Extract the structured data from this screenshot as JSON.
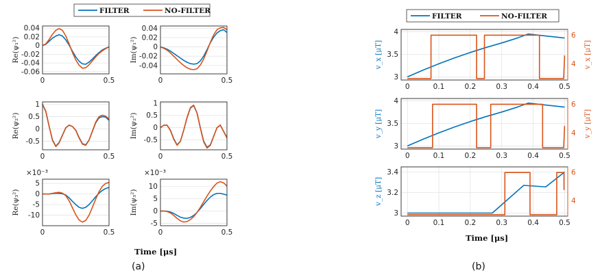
{
  "colors": {
    "filter": "#0072BD",
    "nofilter": "#D95319",
    "axis": "#262626",
    "grid": "#e3e3e3"
  },
  "captions": {
    "a": "(a)",
    "b": "(b)"
  },
  "legend": {
    "filter": "FILTER",
    "nofilter": "NO-FILTER"
  },
  "chart_data": [
    {
      "id": "a1",
      "type": "line",
      "ylabel": "Re(ψ₁²)",
      "xlim": [
        0,
        0.5
      ],
      "ylim": [
        -0.065,
        0.045
      ],
      "xticks": [
        "0",
        "0.5"
      ],
      "yticks": [
        "0.04",
        "0.02",
        "0",
        "-0.02",
        "-0.04",
        "-0.06"
      ],
      "grid": true,
      "series": [
        {
          "name": "FILTER",
          "x": [
            0,
            0.025,
            0.05,
            0.075,
            0.1,
            0.125,
            0.15,
            0.175,
            0.2,
            0.225,
            0.25,
            0.275,
            0.3,
            0.325,
            0.35,
            0.375,
            0.4,
            0.425,
            0.45,
            0.475,
            0.5
          ],
          "y": [
            0,
            0.003,
            0.01,
            0.017,
            0.022,
            0.025,
            0.022,
            0.013,
            0.001,
            -0.013,
            -0.026,
            -0.036,
            -0.042,
            -0.043,
            -0.038,
            -0.031,
            -0.023,
            -0.016,
            -0.01,
            -0.006,
            -0.003
          ]
        },
        {
          "name": "NO-FILTER",
          "x": [
            0,
            0.025,
            0.05,
            0.075,
            0.1,
            0.125,
            0.15,
            0.175,
            0.2,
            0.225,
            0.25,
            0.275,
            0.3,
            0.325,
            0.35,
            0.375,
            0.4,
            0.425,
            0.45,
            0.475,
            0.5
          ],
          "y": [
            0,
            0.004,
            0.014,
            0.026,
            0.035,
            0.039,
            0.035,
            0.022,
            0.004,
            -0.016,
            -0.033,
            -0.045,
            -0.052,
            -0.051,
            -0.044,
            -0.035,
            -0.026,
            -0.018,
            -0.012,
            -0.007,
            -0.003
          ]
        }
      ]
    },
    {
      "id": "a2",
      "type": "line",
      "ylabel": "Im(ψ₁²)",
      "xlim": [
        0,
        0.5
      ],
      "ylim": [
        -0.058,
        0.045
      ],
      "xticks": [
        "0",
        "0.5"
      ],
      "yticks": [
        "0.04",
        "0.02",
        "0",
        "-0.02",
        "-0.04"
      ],
      "grid": true,
      "series": [
        {
          "name": "FILTER",
          "x": [
            0,
            0.025,
            0.05,
            0.075,
            0.1,
            0.125,
            0.15,
            0.175,
            0.2,
            0.225,
            0.25,
            0.275,
            0.3,
            0.325,
            0.35,
            0.375,
            0.4,
            0.425,
            0.45,
            0.475,
            0.5
          ],
          "y": [
            0,
            -0.002,
            -0.005,
            -0.009,
            -0.014,
            -0.019,
            -0.024,
            -0.029,
            -0.033,
            -0.036,
            -0.037,
            -0.036,
            -0.03,
            -0.02,
            -0.006,
            0.009,
            0.021,
            0.03,
            0.035,
            0.037,
            0.031
          ]
        },
        {
          "name": "NO-FILTER",
          "x": [
            0,
            0.025,
            0.05,
            0.075,
            0.1,
            0.125,
            0.15,
            0.175,
            0.2,
            0.225,
            0.25,
            0.275,
            0.3,
            0.325,
            0.35,
            0.375,
            0.4,
            0.425,
            0.45,
            0.475,
            0.5
          ],
          "y": [
            0,
            -0.003,
            -0.007,
            -0.013,
            -0.02,
            -0.027,
            -0.034,
            -0.04,
            -0.045,
            -0.048,
            -0.049,
            -0.047,
            -0.039,
            -0.026,
            -0.009,
            0.01,
            0.026,
            0.037,
            0.041,
            0.042,
            0.037
          ]
        }
      ]
    },
    {
      "id": "a3",
      "type": "line",
      "ylabel": "Re(ψ₂²)",
      "xlim": [
        0,
        0.5
      ],
      "ylim": [
        -0.85,
        1.1
      ],
      "xticks": [
        "0",
        "0.5"
      ],
      "yticks": [
        "1",
        "0.5",
        "0",
        "-0.5"
      ],
      "grid": true,
      "series": [
        {
          "name": "FILTER",
          "x": [
            0,
            0.025,
            0.05,
            0.075,
            0.1,
            0.125,
            0.15,
            0.175,
            0.2,
            0.225,
            0.25,
            0.275,
            0.3,
            0.325,
            0.35,
            0.375,
            0.4,
            0.425,
            0.45,
            0.475,
            0.5
          ],
          "y": [
            1.0,
            0.7,
            0.1,
            -0.45,
            -0.7,
            -0.55,
            -0.25,
            0.05,
            0.15,
            0.1,
            -0.05,
            -0.35,
            -0.6,
            -0.65,
            -0.45,
            -0.1,
            0.25,
            0.45,
            0.5,
            0.48,
            0.35
          ]
        },
        {
          "name": "NO-FILTER",
          "x": [
            0,
            0.025,
            0.05,
            0.075,
            0.1,
            0.125,
            0.15,
            0.175,
            0.2,
            0.225,
            0.25,
            0.275,
            0.3,
            0.325,
            0.35,
            0.375,
            0.4,
            0.425,
            0.45,
            0.475,
            0.5
          ],
          "y": [
            1.0,
            0.72,
            0.1,
            -0.47,
            -0.72,
            -0.57,
            -0.26,
            0.04,
            0.16,
            0.1,
            -0.06,
            -0.37,
            -0.62,
            -0.67,
            -0.46,
            -0.09,
            0.28,
            0.5,
            0.56,
            0.52,
            0.4
          ]
        }
      ]
    },
    {
      "id": "a4",
      "type": "line",
      "ylabel": "Im(ψ₂²)",
      "xlim": [
        0,
        0.5
      ],
      "ylim": [
        -0.9,
        1.05
      ],
      "xticks": [
        "0",
        "0.5"
      ],
      "yticks": [
        "1",
        "0.5",
        "0",
        "-0.5"
      ],
      "grid": true,
      "series": [
        {
          "name": "FILTER",
          "x": [
            0,
            0.025,
            0.05,
            0.075,
            0.1,
            0.125,
            0.15,
            0.175,
            0.2,
            0.225,
            0.25,
            0.275,
            0.3,
            0.325,
            0.35,
            0.375,
            0.4,
            0.425,
            0.45,
            0.475,
            0.5
          ],
          "y": [
            0,
            0.1,
            0.1,
            -0.1,
            -0.45,
            -0.7,
            -0.55,
            -0.1,
            0.4,
            0.8,
            0.9,
            0.6,
            0.0,
            -0.55,
            -0.8,
            -0.7,
            -0.35,
            0.0,
            0.1,
            -0.15,
            -0.4
          ]
        },
        {
          "name": "NO-FILTER",
          "x": [
            0,
            0.025,
            0.05,
            0.075,
            0.1,
            0.125,
            0.15,
            0.175,
            0.2,
            0.225,
            0.25,
            0.275,
            0.3,
            0.325,
            0.35,
            0.375,
            0.4,
            0.425,
            0.45,
            0.475,
            0.5
          ],
          "y": [
            0,
            0.1,
            0.1,
            -0.12,
            -0.47,
            -0.72,
            -0.56,
            -0.1,
            0.42,
            0.82,
            0.92,
            0.6,
            -0.02,
            -0.58,
            -0.83,
            -0.72,
            -0.36,
            0.0,
            0.11,
            -0.16,
            -0.42
          ]
        }
      ]
    },
    {
      "id": "a5",
      "type": "line",
      "ylabel": "Re(ψ₃²)",
      "xlim": [
        0,
        0.5
      ],
      "ylim": [
        -15,
        7
      ],
      "exponent": "×10⁻³",
      "xticks": [
        "0",
        "0.5"
      ],
      "yticks": [
        "5",
        "0",
        "-5",
        "-10"
      ],
      "grid": true,
      "series": [
        {
          "name": "FILTER",
          "x": [
            0,
            0.025,
            0.05,
            0.075,
            0.1,
            0.125,
            0.15,
            0.175,
            0.2,
            0.225,
            0.25,
            0.275,
            0.3,
            0.325,
            0.35,
            0.375,
            0.4,
            0.425,
            0.45,
            0.475,
            0.5
          ],
          "y": [
            0,
            0,
            0,
            0.2,
            0.3,
            0.3,
            0.1,
            -0.5,
            -1.8,
            -3.5,
            -5,
            -6.3,
            -6.8,
            -6.3,
            -5,
            -3.2,
            -1.3,
            0.4,
            1.7,
            2.6,
            3.1
          ]
        },
        {
          "name": "NO-FILTER",
          "x": [
            0,
            0.025,
            0.05,
            0.075,
            0.1,
            0.125,
            0.15,
            0.175,
            0.2,
            0.225,
            0.25,
            0.275,
            0.3,
            0.325,
            0.35,
            0.375,
            0.4,
            0.425,
            0.45,
            0.475,
            0.5
          ],
          "y": [
            0,
            0,
            0,
            0.3,
            0.6,
            0.8,
            0.4,
            -0.8,
            -3.2,
            -6.5,
            -9.8,
            -12.3,
            -13.3,
            -12.5,
            -10,
            -6.3,
            -2.4,
            1.1,
            3.7,
            5,
            5.5
          ]
        }
      ]
    },
    {
      "id": "a6",
      "type": "line",
      "ylabel": "Im(ψ₃²)",
      "xlim": [
        0,
        0.5
      ],
      "ylim": [
        -6,
        13
      ],
      "exponent": "×10⁻³",
      "xticks": [
        "0",
        "0.5"
      ],
      "yticks": [
        "10",
        "5",
        "0",
        "-5"
      ],
      "grid": true,
      "series": [
        {
          "name": "FILTER",
          "x": [
            0,
            0.025,
            0.05,
            0.075,
            0.1,
            0.125,
            0.15,
            0.175,
            0.2,
            0.225,
            0.25,
            0.275,
            0.3,
            0.325,
            0.35,
            0.375,
            0.4,
            0.425,
            0.45,
            0.475,
            0.5
          ],
          "y": [
            0,
            0,
            -0.1,
            -0.4,
            -1,
            -1.8,
            -2.5,
            -2.9,
            -3,
            -2.6,
            -1.8,
            -0.6,
            1,
            2.7,
            4.3,
            5.7,
            6.7,
            7.2,
            7.2,
            6.9,
            6.5
          ]
        },
        {
          "name": "NO-FILTER",
          "x": [
            0,
            0.025,
            0.05,
            0.075,
            0.1,
            0.125,
            0.15,
            0.175,
            0.2,
            0.225,
            0.25,
            0.275,
            0.3,
            0.325,
            0.35,
            0.375,
            0.4,
            0.425,
            0.45,
            0.475,
            0.5
          ],
          "y": [
            0,
            0,
            -0.2,
            -0.8,
            -1.8,
            -3,
            -4,
            -4.5,
            -4.3,
            -3.5,
            -2.3,
            -0.6,
            1.5,
            3.8,
            6.1,
            8.2,
            10,
            11.4,
            12,
            11.5,
            10.2
          ]
        }
      ]
    },
    {
      "id": "b1",
      "type": "line",
      "ylabel": "v_x [μT]",
      "ylabel_right": "v_x [μT]",
      "xlim": [
        -0.02,
        0.51
      ],
      "ylim": [
        2.93,
        4.05
      ],
      "ylim_right": [
        2.9,
        6.4
      ],
      "xticks": [
        "0",
        "0.1",
        "0.2",
        "0.3",
        "0.4",
        "0.5"
      ],
      "yticks": [
        "4",
        "3.5",
        "3"
      ],
      "yticks_right": [
        "6",
        "4"
      ],
      "grid": true,
      "series": [
        {
          "name": "FILTER",
          "axis": "left",
          "x": [
            0,
            0.05,
            0.1,
            0.15,
            0.2,
            0.25,
            0.3,
            0.35,
            0.385,
            0.42,
            0.46,
            0.5
          ],
          "y": [
            3.0,
            3.15,
            3.29,
            3.42,
            3.54,
            3.65,
            3.75,
            3.86,
            3.95,
            3.92,
            3.89,
            3.86
          ]
        },
        {
          "name": "NO-FILTER",
          "axis": "right",
          "x": [
            0,
            0.075,
            0.075,
            0.22,
            0.22,
            0.245,
            0.245,
            0.42,
            0.42,
            0.497,
            0.497,
            0.5
          ],
          "y": [
            3,
            3,
            6,
            6,
            3,
            3,
            6,
            6,
            3,
            3,
            3,
            4.6
          ]
        }
      ]
    },
    {
      "id": "b2",
      "type": "line",
      "ylabel": "v_y [μT]",
      "ylabel_right": "v_y [μT]",
      "xlim": [
        -0.02,
        0.51
      ],
      "ylim": [
        2.93,
        4.05
      ],
      "ylim_right": [
        2.9,
        6.4
      ],
      "xticks": [
        "0",
        "0.1",
        "0.2",
        "0.3",
        "0.4",
        "0.5"
      ],
      "yticks": [
        "4",
        "3.5",
        "3"
      ],
      "yticks_right": [
        "6",
        "4"
      ],
      "grid": true,
      "series": [
        {
          "name": "FILTER",
          "axis": "left",
          "x": [
            0,
            0.05,
            0.1,
            0.15,
            0.2,
            0.25,
            0.3,
            0.35,
            0.385,
            0.42,
            0.46,
            0.5
          ],
          "y": [
            3.0,
            3.15,
            3.29,
            3.42,
            3.54,
            3.65,
            3.75,
            3.86,
            3.95,
            3.92,
            3.89,
            3.86
          ]
        },
        {
          "name": "NO-FILTER",
          "axis": "right",
          "x": [
            0,
            0.08,
            0.08,
            0.22,
            0.22,
            0.265,
            0.265,
            0.43,
            0.43,
            0.497,
            0.497,
            0.5
          ],
          "y": [
            3,
            3,
            6,
            6,
            3,
            3,
            6,
            6,
            3,
            3,
            3,
            4.5
          ]
        }
      ]
    },
    {
      "id": "b3",
      "type": "line",
      "ylabel": "v_z [μT]",
      "ylabel_right": "",
      "xlim": [
        -0.02,
        0.51
      ],
      "ylim": [
        2.97,
        3.45
      ],
      "ylim_right": [
        2.9,
        6.4
      ],
      "xticks": [
        "0",
        "0.1",
        "0.2",
        "0.3",
        "0.4",
        "0.5"
      ],
      "yticks": [
        "3.4",
        "3.2",
        "3"
      ],
      "yticks_right": [
        "6",
        "4"
      ],
      "grid": true,
      "series": [
        {
          "name": "FILTER",
          "axis": "left",
          "x": [
            0,
            0.27,
            0.37,
            0.44,
            0.5
          ],
          "y": [
            3.0,
            3.0,
            3.27,
            3.255,
            3.4
          ]
        },
        {
          "name": "NO-FILTER",
          "axis": "right",
          "x": [
            0,
            0.31,
            0.31,
            0.39,
            0.39,
            0.475,
            0.475,
            0.498,
            0.498,
            0.5
          ],
          "y": [
            3,
            3,
            6,
            6,
            3,
            3,
            6,
            6,
            4.8,
            4.8
          ]
        }
      ]
    }
  ],
  "xlabel_a": "Time [μs]",
  "xlabel_b": "Time [μs]"
}
